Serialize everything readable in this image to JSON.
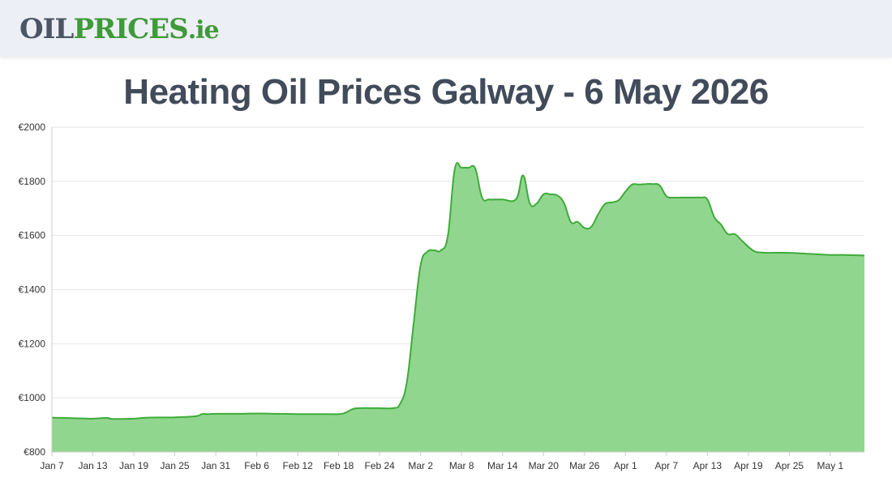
{
  "header": {
    "logo": {
      "part1": "OIL",
      "part2": "PRICES",
      "part3": ".ie"
    }
  },
  "colors": {
    "line": "#3eab3a",
    "fill": "#91d68f",
    "grid": "#e6e6e6",
    "axis": "#cccccc"
  },
  "chart_data": {
    "type": "area",
    "title": "Heating Oil Prices Galway - 6 May 2026",
    "xlabel": "",
    "ylabel": "",
    "ylim": [
      800,
      2000
    ],
    "grid": true,
    "legend": "none",
    "y_ticks": [
      "€800",
      "€1000",
      "€1200",
      "€1400",
      "€1600",
      "€1800",
      "€2000"
    ],
    "x_ticks": [
      "Jan 7",
      "Jan 13",
      "Jan 19",
      "Jan 25",
      "Jan 31",
      "Feb 6",
      "Feb 12",
      "Feb 18",
      "Feb 24",
      "Mar 2",
      "Mar 8",
      "Mar 14",
      "Mar 20",
      "Mar 26",
      "Apr 1",
      "Apr 7",
      "Apr 13",
      "Apr 19",
      "Apr 25",
      "May 1"
    ],
    "x": [
      "2026-01-07",
      "2026-01-10",
      "2026-01-13",
      "2026-01-15",
      "2026-01-16",
      "2026-01-19",
      "2026-01-21",
      "2026-01-25",
      "2026-01-28",
      "2026-01-29",
      "2026-01-30",
      "2026-01-31",
      "2026-02-03",
      "2026-02-06",
      "2026-02-09",
      "2026-02-12",
      "2026-02-15",
      "2026-02-18",
      "2026-02-19",
      "2026-02-20",
      "2026-02-21",
      "2026-02-24",
      "2026-02-26",
      "2026-02-27",
      "2026-02-28",
      "2026-03-01",
      "2026-03-02",
      "2026-03-03",
      "2026-03-04",
      "2026-03-05",
      "2026-03-06",
      "2026-03-07",
      "2026-03-08",
      "2026-03-09",
      "2026-03-10",
      "2026-03-11",
      "2026-03-12",
      "2026-03-13",
      "2026-03-14",
      "2026-03-16",
      "2026-03-17",
      "2026-03-18",
      "2026-03-19",
      "2026-03-20",
      "2026-03-21",
      "2026-03-22",
      "2026-03-23",
      "2026-03-24",
      "2026-03-25",
      "2026-03-26",
      "2026-03-27",
      "2026-03-28",
      "2026-03-29",
      "2026-03-30",
      "2026-03-31",
      "2026-04-01",
      "2026-04-02",
      "2026-04-03",
      "2026-04-04",
      "2026-04-05",
      "2026-04-06",
      "2026-04-07",
      "2026-04-08",
      "2026-04-09",
      "2026-04-10",
      "2026-04-11",
      "2026-04-12",
      "2026-04-13",
      "2026-04-14",
      "2026-04-15",
      "2026-04-16",
      "2026-04-17",
      "2026-04-18",
      "2026-04-19",
      "2026-04-20",
      "2026-04-21",
      "2026-04-22",
      "2026-04-25",
      "2026-04-28",
      "2026-05-01",
      "2026-05-03",
      "2026-05-06"
    ],
    "series": [
      {
        "values": [
          927,
          925,
          923,
          926,
          922,
          923,
          927,
          928,
          932,
          940,
          940,
          941,
          941,
          942,
          941,
          940,
          940,
          940,
          945,
          958,
          962,
          962,
          962,
          978,
          1060,
          1280,
          1490,
          1540,
          1545,
          1545,
          1600,
          1845,
          1850,
          1850,
          1847,
          1740,
          1733,
          1733,
          1733,
          1735,
          1822,
          1718,
          1718,
          1752,
          1752,
          1748,
          1720,
          1650,
          1650,
          1628,
          1632,
          1678,
          1716,
          1722,
          1730,
          1762,
          1788,
          1788,
          1790,
          1790,
          1785,
          1745,
          1740,
          1740,
          1740,
          1740,
          1740,
          1733,
          1668,
          1640,
          1605,
          1605,
          1582,
          1558,
          1540,
          1537,
          1536,
          1536,
          1532,
          1528,
          1528,
          1526
        ]
      }
    ]
  }
}
